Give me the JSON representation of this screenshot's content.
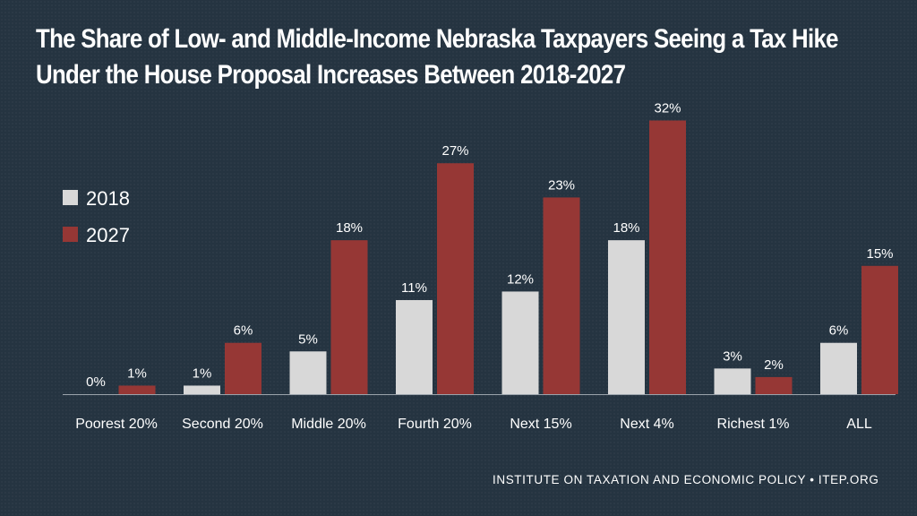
{
  "chart_data": {
    "type": "bar",
    "title_lines": [
      "The Share of Low- and Middle-Income Nebraska Taxpayers Seeing a Tax Hike",
      "Under the House Proposal Increases Between 2018-2027"
    ],
    "categories": [
      "Poorest 20%",
      "Second 20%",
      "Middle 20%",
      "Fourth 20%",
      "Next 15%",
      "Next 4%",
      "Richest 1%",
      "ALL"
    ],
    "series": [
      {
        "name": "2018",
        "color": "#d8d8d8",
        "values": [
          0,
          1,
          5,
          11,
          12,
          18,
          3,
          6
        ],
        "labels": [
          "0%",
          "1%",
          "5%",
          "11%",
          "12%",
          "18%",
          "3%",
          "6%"
        ]
      },
      {
        "name": "2027",
        "color": "#963735",
        "values": [
          1,
          6,
          18,
          27,
          23,
          32,
          2,
          15
        ],
        "labels": [
          "1%",
          "6%",
          "18%",
          "27%",
          "23%",
          "32%",
          "2%",
          "15%"
        ]
      }
    ],
    "ylim": [
      0,
      34
    ],
    "xlabel": "",
    "ylabel": "",
    "grid": false,
    "legend_position": "left"
  },
  "footer": {
    "credit": "INSTITUTE ON TAXATION AND ECONOMIC POLICY • ITEP.ORG"
  }
}
